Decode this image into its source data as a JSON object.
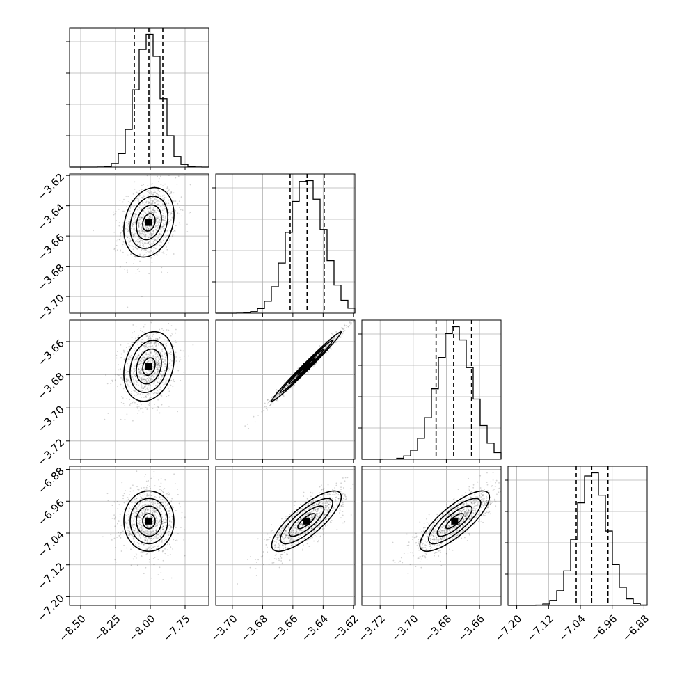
{
  "chart_data": {
    "type": "corner",
    "parameters": [
      {
        "index": 0,
        "range": [
          -8.58,
          -7.58
        ],
        "ticks": [
          -8.5,
          -8.25,
          -8.0,
          -7.75
        ],
        "tick_labels": [
          "−8.50",
          "−8.25",
          "−8.00",
          "−7.75"
        ],
        "mean": -8.01,
        "sigma": 0.09,
        "quantiles": [
          -8.115,
          -8.01,
          -7.91
        ]
      },
      {
        "index": 1,
        "range": [
          -3.711,
          -3.619
        ],
        "ticks": [
          -3.7,
          -3.68,
          -3.66,
          -3.64,
          -3.62
        ],
        "tick_labels": [
          "−3.70",
          "−3.68",
          "−3.66",
          "−3.64",
          "−3.62"
        ],
        "mean": -3.651,
        "sigma": 0.0115,
        "quantiles": [
          -3.6618,
          -3.6506,
          -3.6393
        ]
      },
      {
        "index": 2,
        "range": [
          -3.731,
          -3.647
        ],
        "ticks": [
          -3.72,
          -3.7,
          -3.68,
          -3.66
        ],
        "tick_labels": [
          "−3.72",
          "−3.70",
          "−3.68",
          "−3.66"
        ],
        "mean": -3.675,
        "sigma": 0.0105,
        "quantiles": [
          -3.6862,
          -3.6756,
          -3.6648
        ]
      },
      {
        "index": 3,
        "range": [
          -7.222,
          -6.872
        ],
        "ticks": [
          -7.2,
          -7.12,
          -7.04,
          -6.96,
          -6.88
        ],
        "tick_labels": [
          "−7.20",
          "−7.12",
          "−7.04",
          "−6.96",
          "−6.88"
        ],
        "mean": -7.01,
        "sigma": 0.038,
        "quantiles": [
          -7.0505,
          -7.0115,
          -6.9705
        ]
      }
    ],
    "correlations": [
      [
        0,
        1,
        0.22
      ],
      [
        0,
        2,
        0.22
      ],
      [
        0,
        3,
        0.0
      ],
      [
        1,
        2,
        0.99
      ],
      [
        1,
        3,
        0.8
      ],
      [
        2,
        3,
        0.8
      ]
    ],
    "hist_bins": 20,
    "contour_levels": [
      0.5,
      1.0,
      1.5,
      2.0
    ],
    "grid": true,
    "ylabels_on_left_column": true,
    "xlabels_on_bottom_row": true
  }
}
